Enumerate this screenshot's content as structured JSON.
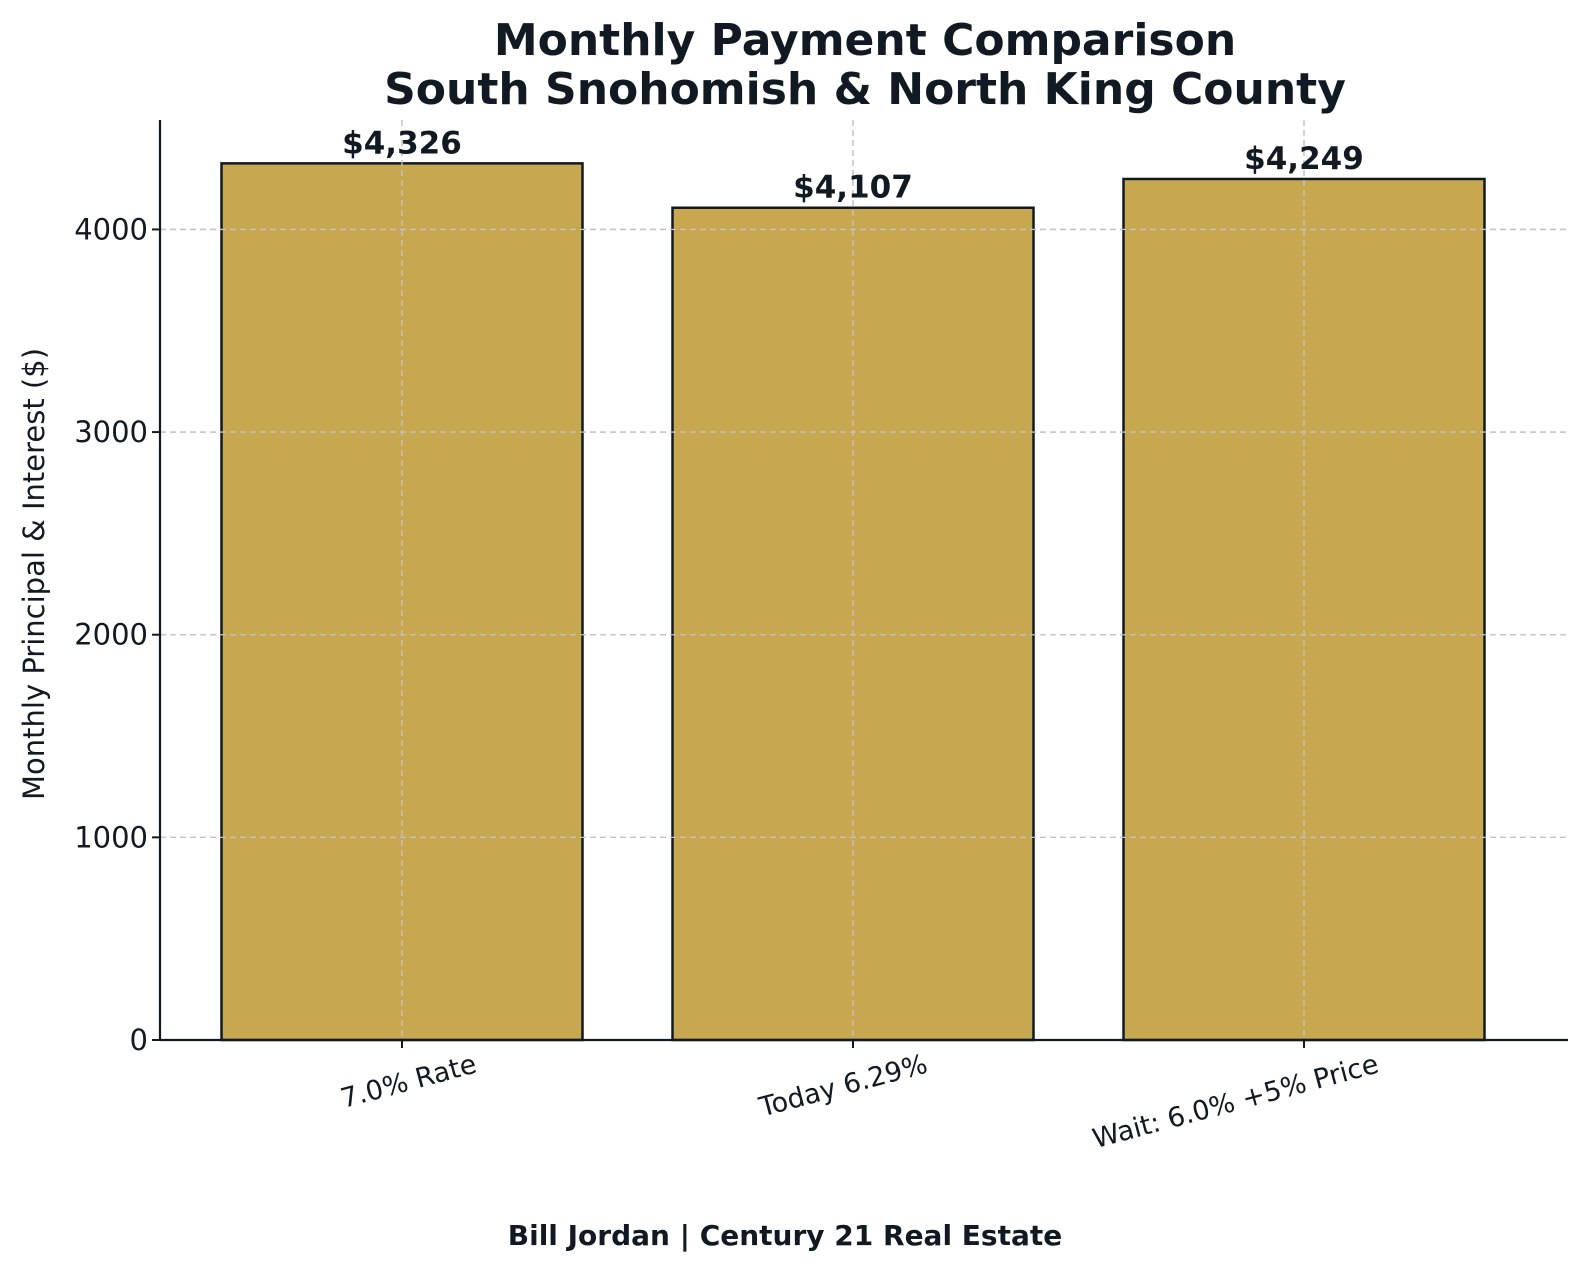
{
  "chart_data": {
    "type": "bar",
    "title_line1": "Monthly Payment Comparison",
    "title_line2": "South Snohomish & North King County",
    "xlabel": "",
    "ylabel": "Monthly Principal & Interest ($)",
    "categories": [
      "7.0% Rate",
      "Today 6.29%",
      "Wait: 6.0% +5% Price"
    ],
    "values": [
      4326,
      4107,
      4249
    ],
    "data_labels": [
      "$4,326",
      "$4,107",
      "$4,249"
    ],
    "ylim": [
      0,
      4540
    ],
    "yticks": [
      0,
      1000,
      2000,
      3000,
      4000
    ],
    "ytick_labels": [
      "0",
      "1000",
      "2000",
      "3000",
      "4000"
    ],
    "grid": true,
    "legend": "none",
    "bar_color": "#c7a74f",
    "edge_color": "#111a22"
  },
  "footer": "Bill Jordan | Century 21 Real Estate"
}
